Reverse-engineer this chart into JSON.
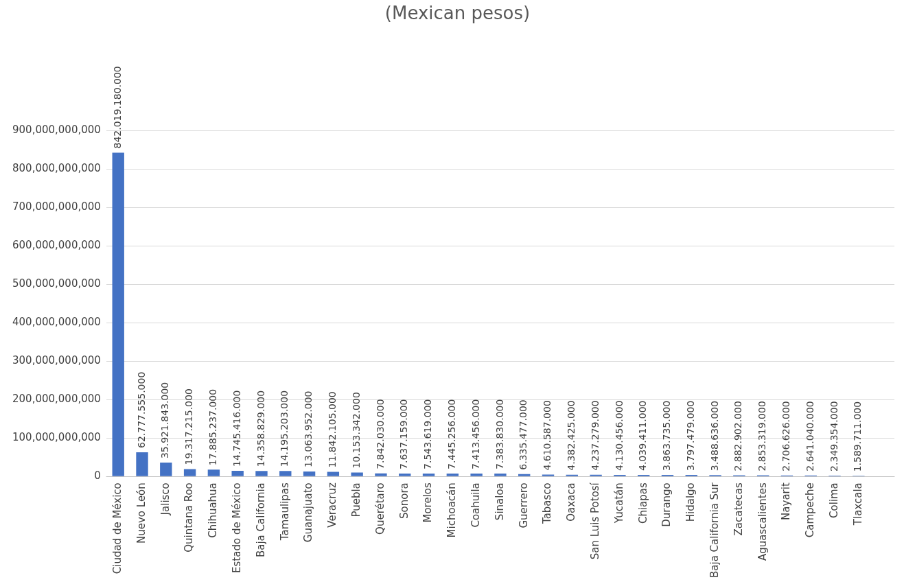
{
  "chart_data": {
    "type": "bar",
    "title": "(Mexican pesos)",
    "categories": [
      "Ciudad de México",
      "Nuevo León",
      "Jalisco",
      "Quintana Roo",
      "Chihuahua",
      "Estado de México",
      "Baja California",
      "Tamaulipas",
      "Guanajuato",
      "Veracruz",
      "Puebla",
      "Querétaro",
      "Sonora",
      "Morelos",
      "Michoacán",
      "Coahuila",
      "Sinaloa",
      "Guerrero",
      "Tabasco",
      "Oaxaca",
      "San Luis Potosí",
      "Yucatán",
      "Chiapas",
      "Durango",
      "Hidalgo",
      "Baja California Sur",
      "Zacatecas",
      "Aguascalientes",
      "Nayarit",
      "Campeche",
      "Colima",
      "Tlaxcala",
      null
    ],
    "values": [
      842019180000,
      62777555000,
      35921843000,
      19317215000,
      17885237000,
      14745416000,
      14358829000,
      14195203000,
      13063952000,
      11842105000,
      10153342000,
      7842030000,
      7637159000,
      7543619000,
      7445256000,
      7413456000,
      7383830000,
      6335477000,
      4610587000,
      4382425000,
      4237279000,
      4130456000,
      4039411000,
      3863735000,
      3797479000,
      3488636000,
      2882902000,
      2853319000,
      2706626000,
      2641040000,
      2349354000,
      1589711000,
      null
    ],
    "value_labels": [
      "842.019.180.000",
      "62.777.555.000",
      "35.921.843.000",
      "19.317.215.000",
      "17.885.237.000",
      "14.745.416.000",
      "14.358.829.000",
      "14.195.203.000",
      "13.063.952.000",
      "11.842.105.000",
      "10.153.342.000",
      "7.842.030.000",
      "7.637.159.000",
      "7.543.619.000",
      "7.445.256.000",
      "7.413.456.000",
      "7.383.830.000",
      "6.335.477.000",
      "4.610.587.000",
      "4.382.425.000",
      "4.237.279.000",
      "4.130.456.000",
      "4.039.411.000",
      "3.863.735.000",
      "3.797.479.000",
      "3.488.636.000",
      "2.882.902.000",
      "2.853.319.000",
      "2.706.626.000",
      "2.641.040.000",
      "2.349.354.000",
      "1.589.711.000",
      null
    ],
    "color": "#4472c4",
    "ylim": [
      0,
      900000000000
    ],
    "yticks": [
      {
        "value": 0,
        "label": "0"
      },
      {
        "value": 100000000000,
        "label": "100,000,000,000"
      },
      {
        "value": 200000000000,
        "label": "200,000,000,000"
      },
      {
        "value": 300000000000,
        "label": "300,000,000,000"
      },
      {
        "value": 400000000000,
        "label": "400,000,000,000"
      },
      {
        "value": 500000000000,
        "label": "500,000,000,000"
      },
      {
        "value": 600000000000,
        "label": "600,000,000,000"
      },
      {
        "value": 700000000000,
        "label": "700,000,000,000"
      },
      {
        "value": 800000000000,
        "label": "800,000,000,000"
      },
      {
        "value": 900000000000,
        "label": "900,000,000,000"
      }
    ],
    "grid": "y",
    "legend": false
  }
}
